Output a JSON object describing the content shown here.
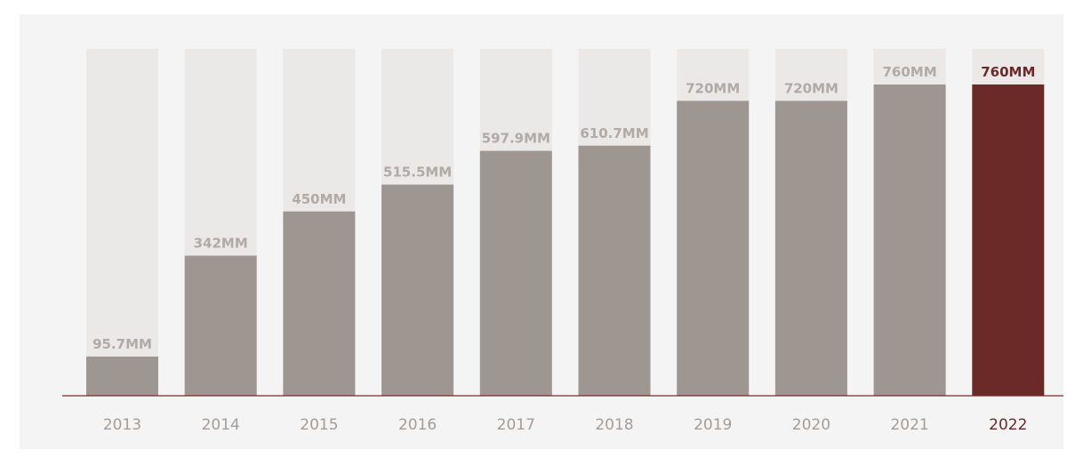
{
  "chart_data": {
    "type": "bar",
    "categories": [
      "2013",
      "2014",
      "2015",
      "2016",
      "2017",
      "2018",
      "2019",
      "2020",
      "2021",
      "2022"
    ],
    "values": [
      95.7,
      342,
      450,
      515.5,
      597.9,
      610.7,
      720,
      720,
      760,
      760
    ],
    "value_labels": [
      "95.7MM",
      "342MM",
      "450MM",
      "515.5MM",
      "597.9MM",
      "610.7MM",
      "720MM",
      "720MM",
      "760MM",
      "760MM"
    ],
    "color": "#9e9690",
    "colors": [
      "#9e9690",
      "#9e9690",
      "#9e9690",
      "#9e9690",
      "#9e9690",
      "#9e9690",
      "#9e9690",
      "#9e9690",
      "#9e9690",
      "#6b2a28"
    ]
  }
}
